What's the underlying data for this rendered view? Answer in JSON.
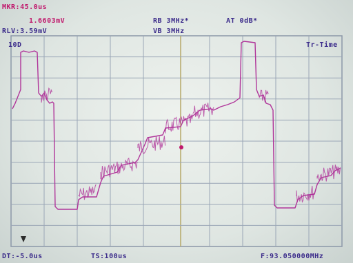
{
  "readouts": {
    "marker_time": "MKR:45.0us",
    "marker_level": "1.6603mV",
    "ref_level": "RLV:3.59mV",
    "rbw": "RB 3MHz*",
    "vbw": "VB 3MHz",
    "attenuation": "AT 0dB*",
    "scale": "10D",
    "mode": "Tr-Time",
    "delta_time": "DT:-5.0us",
    "time_span": "TS:100us",
    "frequency": "F:93.050000MHz"
  },
  "colors": {
    "text": "#3a2a8a",
    "marker_text": "#c0186c",
    "trace": "#b0359a",
    "grid": "#9aa6b6"
  }
}
